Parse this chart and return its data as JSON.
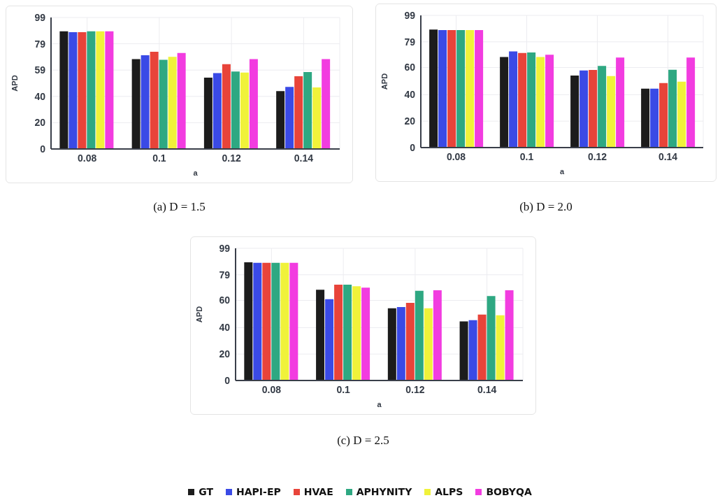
{
  "chart_data": [
    {
      "type": "bar",
      "title": "(a) D = 1.5",
      "xlabel": "a",
      "ylabel": "APD",
      "categories": [
        "0.08",
        "0.1",
        "0.12",
        "0.14"
      ],
      "ylim": [
        0,
        99
      ],
      "yticks": [
        0,
        {
          "value": 19.8,
          "label": "20"
        },
        {
          "value": 39.6,
          "label": "40"
        },
        {
          "value": 59.4,
          "label": "59"
        },
        {
          "value": 79.2,
          "label": "79"
        },
        99
      ],
      "grid": true,
      "legend": "bottom",
      "series": [
        {
          "name": "GT",
          "color": "#1c1c1c",
          "values": [
            88.6,
            67.7,
            53.7,
            43.6
          ]
        },
        {
          "name": "HAPI-EP",
          "color": "#3a4ae6",
          "values": [
            88.0,
            70.6,
            57.1,
            46.7
          ]
        },
        {
          "name": "HVAE",
          "color": "#e8443a",
          "values": [
            88.0,
            73.2,
            63.8,
            54.8
          ]
        },
        {
          "name": "APHYNITY",
          "color": "#2ea882",
          "values": [
            88.6,
            67.2,
            58.3,
            57.9
          ]
        },
        {
          "name": "ALPS",
          "color": "#f0f23a",
          "values": [
            88.6,
            69.4,
            57.5,
            46.3
          ]
        },
        {
          "name": "BOBYQA",
          "color": "#f23ce0",
          "values": [
            88.6,
            72.3,
            67.7,
            67.7
          ]
        }
      ]
    },
    {
      "type": "bar",
      "title": "(b) D = 2.0",
      "xlabel": "a",
      "ylabel": "APD",
      "categories": [
        "0.08",
        "0.1",
        "0.12",
        "0.14"
      ],
      "ylim": [
        0,
        99
      ],
      "yticks": [
        0,
        {
          "value": 19.8,
          "label": "20"
        },
        {
          "value": 39.6,
          "label": "40"
        },
        60,
        {
          "value": 79.2,
          "label": "79"
        },
        99
      ],
      "grid": true,
      "series": [
        {
          "color": "#1c1c1c",
          "values": [
            88.4,
            67.8,
            54.0,
            44.1
          ]
        },
        {
          "color": "#3a4ae6",
          "values": [
            88.0,
            72.0,
            57.8,
            44.1
          ]
        },
        {
          "color": "#e8443a",
          "values": [
            88.0,
            70.8,
            58.1,
            48.3
          ]
        },
        {
          "color": "#2ea882",
          "values": [
            88.0,
            71.2,
            61.2,
            58.3
          ]
        },
        {
          "color": "#f0f23a",
          "values": [
            88.0,
            67.8,
            53.6,
            49.4
          ]
        },
        {
          "color": "#f23ce0",
          "values": [
            88.0,
            69.5,
            67.4,
            67.4
          ]
        }
      ]
    },
    {
      "type": "bar",
      "title": "(c) D = 2.5",
      "xlabel": "a",
      "ylabel": "APD",
      "categories": [
        "0.08",
        "0.1",
        "0.12",
        "0.14"
      ],
      "ylim": [
        0,
        99
      ],
      "yticks": [
        0,
        {
          "value": 19.8,
          "label": "20"
        },
        {
          "value": 39.6,
          "label": "40"
        },
        60,
        {
          "value": 79.2,
          "label": "79"
        },
        99
      ],
      "grid": true,
      "series": [
        {
          "color": "#1c1c1c",
          "values": [
            88.5,
            68.0,
            54.1,
            44.2
          ]
        },
        {
          "color": "#3a4ae6",
          "values": [
            88.1,
            60.9,
            55.0,
            45.2
          ]
        },
        {
          "color": "#e8443a",
          "values": [
            88.1,
            71.8,
            58.1,
            49.4
          ]
        },
        {
          "color": "#2ea882",
          "values": [
            88.1,
            71.8,
            67.2,
            63.2
          ]
        },
        {
          "color": "#f0f23a",
          "values": [
            88.1,
            70.6,
            54.1,
            48.8
          ]
        },
        {
          "color": "#f23ce0",
          "values": [
            88.1,
            69.5,
            67.6,
            67.6
          ]
        }
      ]
    }
  ]
}
